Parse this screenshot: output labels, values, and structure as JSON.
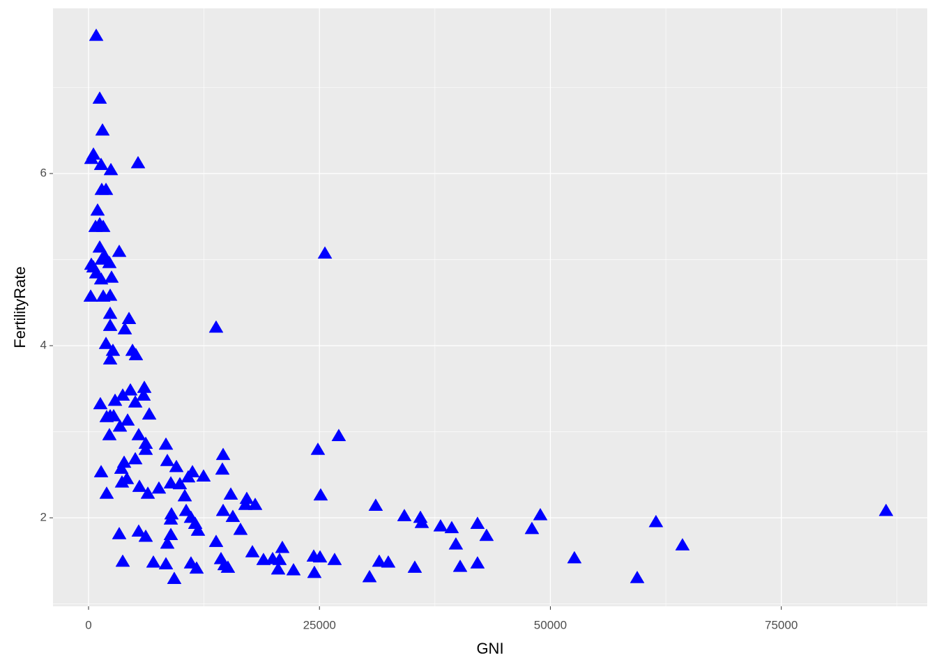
{
  "chart_data": {
    "type": "scatter",
    "x_label": "GNI",
    "y_label": "FertilityRate",
    "color": "#0000ff",
    "marker": "triangle",
    "grid": true,
    "xlim": [
      -3850,
      90800
    ],
    "ylim": [
      0.972,
      7.919
    ],
    "xticks": [
      0,
      25000,
      50000,
      75000
    ],
    "yticks": [
      2,
      4,
      6
    ],
    "x": [
      830,
      1210,
      1510,
      530,
      300,
      1360,
      2420,
      5360,
      1430,
      1890,
      980,
      1210,
      1590,
      760,
      1210,
      3320,
      1740,
      300,
      530,
      1430,
      2260,
      830,
      2490,
      1360,
      230,
      1590,
      2340,
      25590,
      2340,
      4380,
      2340,
      3930,
      13810,
      1890,
      4760,
      2640,
      5130,
      2340,
      6040,
      4530,
      3700,
      5960,
      5060,
      2870,
      1280,
      6570,
      2340,
      4230,
      1960,
      2720,
      3400,
      2260,
      27090,
      5430,
      8380,
      6190,
      6190,
      24830,
      14570,
      3850,
      8530,
      5060,
      9510,
      3550,
      14490,
      11250,
      1360,
      10790,
      12450,
      4150,
      5510,
      8910,
      3620,
      9890,
      7620,
      6420,
      10420,
      1960,
      15400,
      25130,
      17130,
      16980,
      18040,
      31090,
      10570,
      14570,
      8980,
      15620,
      11090,
      34190,
      35930,
      48910,
      86340,
      8910,
      36080,
      61430,
      42110,
      38110,
      39320,
      11550,
      11850,
      16450,
      48000,
      43090,
      3320,
      5430,
      6190,
      8910,
      13810,
      8530,
      39770,
      64300,
      20980,
      17740,
      14340,
      18940,
      19930,
      20680,
      24380,
      25060,
      26640,
      52600,
      3700,
      7020,
      8380,
      11090,
      31470,
      32450,
      42110,
      14720,
      15090,
      11700,
      20530,
      22190,
      35320,
      40230,
      24450,
      30420,
      9280,
      59400
    ],
    "y": [
      7.6,
      6.87,
      6.5,
      6.22,
      6.17,
      6.1,
      6.04,
      6.12,
      5.81,
      5.81,
      5.57,
      5.41,
      5.38,
      5.38,
      5.14,
      5.09,
      5.04,
      4.94,
      4.91,
      5.0,
      4.96,
      4.84,
      4.79,
      4.77,
      4.57,
      4.57,
      4.58,
      5.07,
      4.37,
      4.31,
      4.23,
      4.19,
      4.21,
      4.02,
      3.94,
      3.94,
      3.89,
      3.84,
      3.51,
      3.48,
      3.42,
      3.42,
      3.34,
      3.36,
      3.32,
      3.2,
      3.18,
      3.13,
      3.17,
      3.18,
      3.06,
      2.96,
      2.95,
      2.96,
      2.85,
      2.86,
      2.79,
      2.79,
      2.73,
      2.64,
      2.66,
      2.68,
      2.59,
      2.57,
      2.56,
      2.53,
      2.53,
      2.47,
      2.48,
      2.45,
      2.36,
      2.4,
      2.41,
      2.39,
      2.34,
      2.28,
      2.25,
      2.28,
      2.27,
      2.26,
      2.22,
      2.15,
      2.15,
      2.14,
      2.08,
      2.08,
      2.04,
      2.01,
      2.0,
      2.02,
      2.0,
      2.03,
      2.08,
      1.98,
      1.94,
      1.95,
      1.93,
      1.9,
      1.88,
      1.93,
      1.85,
      1.86,
      1.87,
      1.79,
      1.81,
      1.84,
      1.78,
      1.8,
      1.72,
      1.7,
      1.69,
      1.68,
      1.65,
      1.6,
      1.52,
      1.51,
      1.52,
      1.51,
      1.55,
      1.54,
      1.51,
      1.53,
      1.49,
      1.48,
      1.46,
      1.47,
      1.49,
      1.48,
      1.47,
      1.45,
      1.42,
      1.41,
      1.4,
      1.39,
      1.42,
      1.43,
      1.36,
      1.31,
      1.29,
      1.3
    ]
  }
}
